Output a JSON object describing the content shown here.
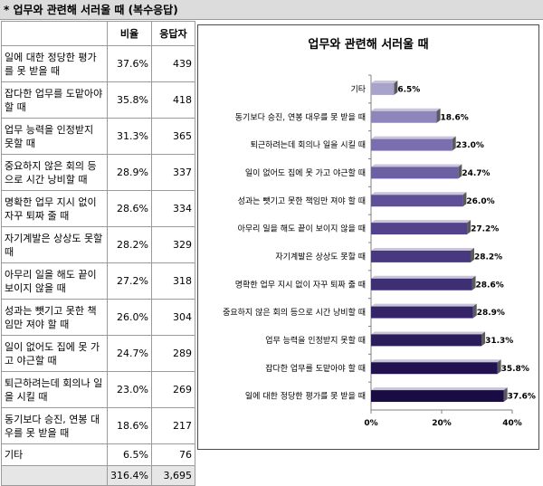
{
  "header_title": "* 업무와 관련해 서러울 때 (복수응답)",
  "table": {
    "col_rate": "비율",
    "col_resp": "응답자",
    "rows": [
      {
        "label": "일에 대한 정당한 평가를 못 받을 때",
        "rate": "37.6%",
        "count": "439"
      },
      {
        "label": "잡다한 업무를 도맡아야 할 때",
        "rate": "35.8%",
        "count": "418"
      },
      {
        "label": "업무 능력을 인정받지 못할 때",
        "rate": "31.3%",
        "count": "365"
      },
      {
        "label": "중요하지 않은 회의 등으로 시간 낭비할 때",
        "rate": "28.9%",
        "count": "337"
      },
      {
        "label": "명확한 업무 지시 없이 자꾸 퇴짜 줄 때",
        "rate": "28.6%",
        "count": "334"
      },
      {
        "label": "자기계발은 상상도 못할 때",
        "rate": "28.2%",
        "count": "329"
      },
      {
        "label": "아무리 일을 해도 끝이 보이지 않을 때",
        "rate": "27.2%",
        "count": "318"
      },
      {
        "label": "성과는 뺏기고 못한 책임만 져야 할 때",
        "rate": "26.0%",
        "count": "304"
      },
      {
        "label": "일이 없어도 집에 못 가고 야근할 때",
        "rate": "24.7%",
        "count": "289"
      },
      {
        "label": "퇴근하려는데 회의나 일을 시킬 때",
        "rate": "23.0%",
        "count": "269"
      },
      {
        "label": "동기보다 승진, 연봉 대우를 못 받을 때",
        "rate": "18.6%",
        "count": "217"
      },
      {
        "label": "기타",
        "rate": "6.5%",
        "count": "76"
      }
    ],
    "total_rate": "316.4%",
    "total_count": "3,695"
  },
  "chart_data": {
    "type": "bar",
    "orientation": "horizontal",
    "title": "업무와 관련해 서러울 때",
    "categories": [
      "기타",
      "동기보다 승진, 연봉 대우를 못 받을 때",
      "퇴근하려는데 회의나 일을 시킬 때",
      "일이 없어도 집에 못 가고 야근할 때",
      "성과는 뺏기고 못한 책임만 져야 할 때",
      "아무리 일을 해도 끝이 보이지 않을 때",
      "자기계발은 상상도 못할 때",
      "명확한 업무 지시 없이 자꾸 퇴짜 줄 때",
      "중요하지 않은 회의 등으로 시간 낭비할 때",
      "업무 능력을 인정받지 못할 때",
      "잡다한 업무를 도맡아야 할 때",
      "일에 대한 정당한 평가를 못 받을 때"
    ],
    "values": [
      6.5,
      18.6,
      23.0,
      24.7,
      26.0,
      27.2,
      28.2,
      28.6,
      28.9,
      31.3,
      35.8,
      37.6
    ],
    "value_labels": [
      "6.5%",
      "18.6%",
      "23.0%",
      "24.7%",
      "26.0%",
      "27.2%",
      "28.2%",
      "28.6%",
      "28.9%",
      "31.3%",
      "35.8%",
      "37.6%"
    ],
    "xlim": [
      0,
      40
    ],
    "xticks": [
      "0%",
      "20%",
      "40%"
    ],
    "bar_colors": [
      "#a8a3c9",
      "#8e85bb",
      "#7a6eae",
      "#6c5fa2",
      "#5e4f96",
      "#52428b",
      "#48387f",
      "#3e2e74",
      "#352568",
      "#2b1c5c",
      "#221350",
      "#190b44"
    ],
    "grid": false,
    "legend": "none"
  }
}
